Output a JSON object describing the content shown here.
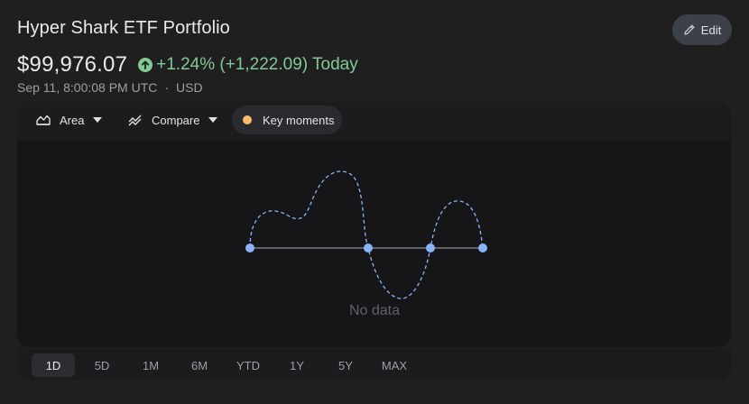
{
  "header": {
    "title": "Hyper Shark ETF Portfolio",
    "edit_label": "Edit"
  },
  "quote": {
    "price": "$99,976.07",
    "change": "+1.24% (+1,222.09) Today",
    "direction_icon": "arrow-up-circle-icon",
    "change_color": "#81c995",
    "timestamp": "Sep 11, 8:00:08 PM UTC",
    "separator": "·",
    "currency": "USD"
  },
  "toolbar": {
    "area_label": "Area",
    "compare_label": "Compare",
    "key_moments_label": "Key moments",
    "key_moments_color": "#fbbc6b"
  },
  "chart": {
    "empty_text": "No data"
  },
  "ranges": [
    {
      "label": "1D",
      "active": true
    },
    {
      "label": "5D",
      "active": false
    },
    {
      "label": "1M",
      "active": false
    },
    {
      "label": "6M",
      "active": false
    },
    {
      "label": "YTD",
      "active": false
    },
    {
      "label": "1Y",
      "active": false
    },
    {
      "label": "5Y",
      "active": false
    },
    {
      "label": "MAX",
      "active": false
    }
  ]
}
